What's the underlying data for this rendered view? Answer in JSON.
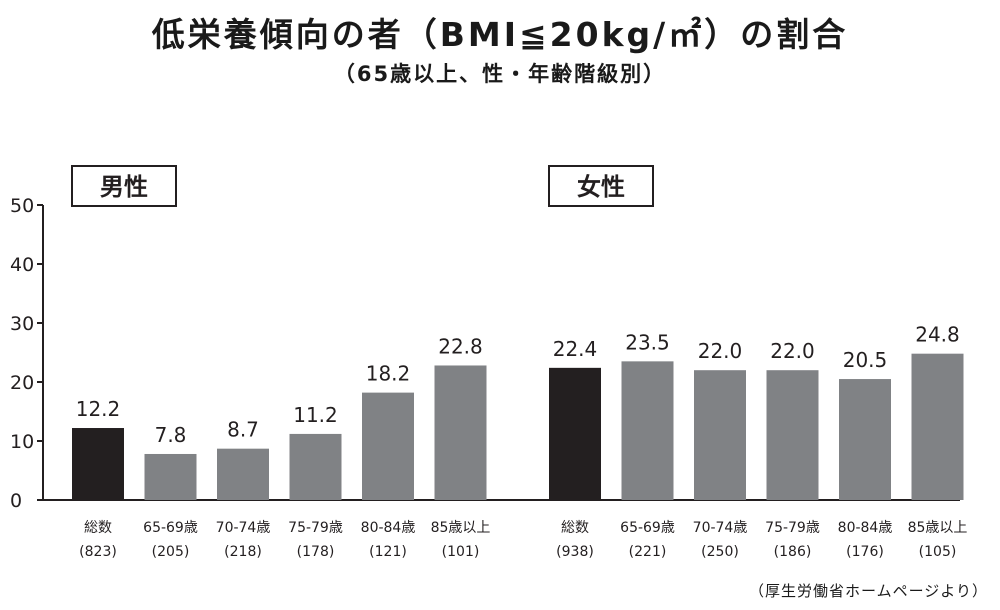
{
  "title": "低栄養傾向の者（BMI≦20kg/㎡）の割合",
  "subtitle": "（65歳以上、性・年齢階級別）",
  "source": "（厚生労働省ホームページより）",
  "chart_data": {
    "type": "bar",
    "ylim": [
      0,
      50
    ],
    "yticks": [
      0,
      10,
      20,
      30,
      40,
      50
    ],
    "groups": [
      {
        "name": "男性",
        "categories": [
          "総数",
          "65-69歳",
          "70-74歳",
          "75-79歳",
          "80-84歳",
          "85歳以上"
        ],
        "counts": [
          "(823)",
          "(205)",
          "(218)",
          "(178)",
          "(121)",
          "(101)"
        ],
        "values": [
          12.2,
          7.8,
          8.7,
          11.2,
          18.2,
          22.8
        ]
      },
      {
        "name": "女性",
        "categories": [
          "総数",
          "65-69歳",
          "70-74歳",
          "75-79歳",
          "80-84歳",
          "85歳以上"
        ],
        "counts": [
          "(938)",
          "(221)",
          "(250)",
          "(186)",
          "(176)",
          "(105)"
        ],
        "values": [
          22.4,
          23.5,
          22.0,
          22.0,
          20.5,
          24.8
        ]
      }
    ],
    "colors": {
      "total": "#231f20",
      "age": "#808285"
    }
  }
}
